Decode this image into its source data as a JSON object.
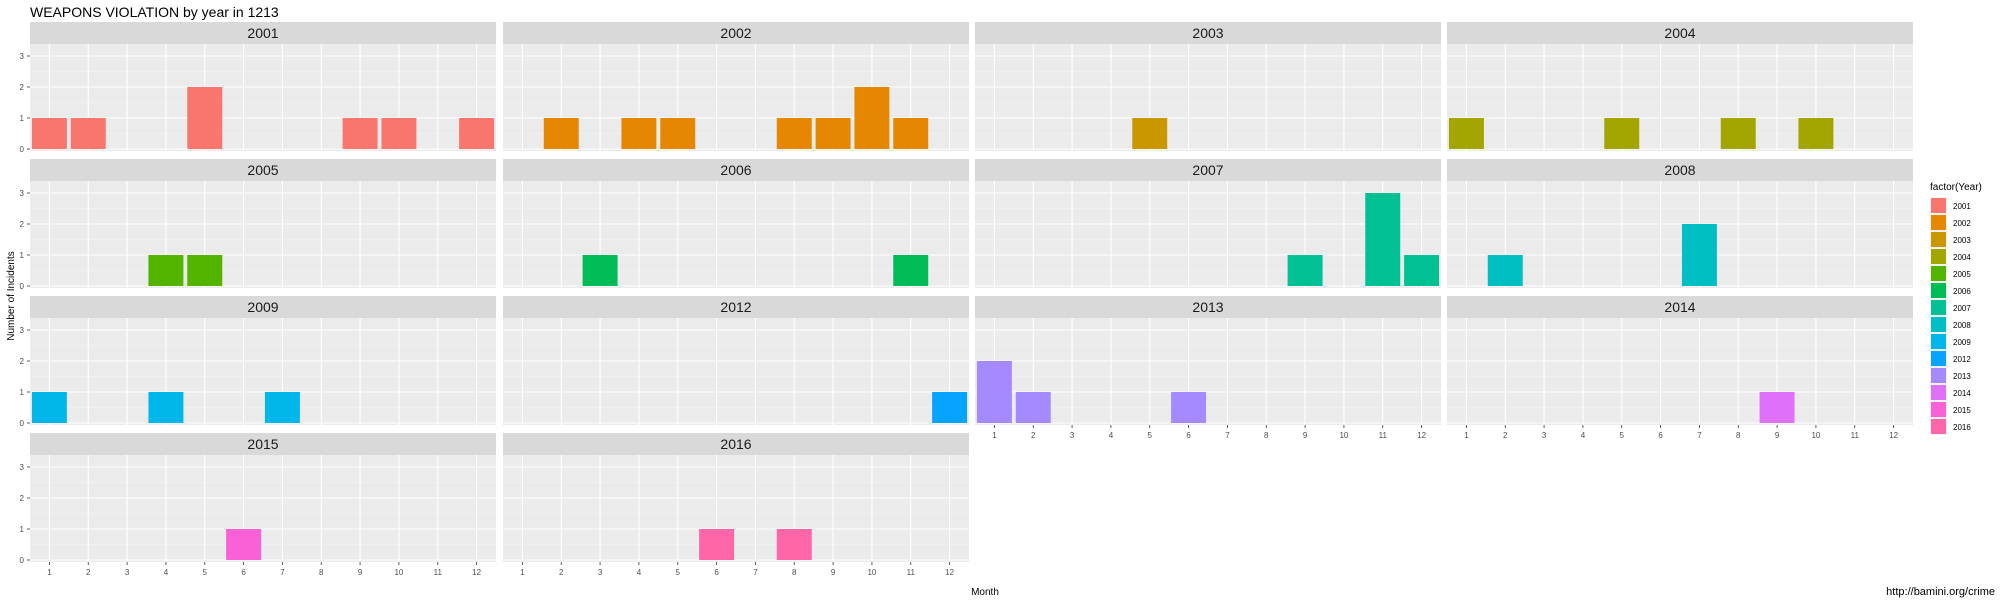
{
  "chart_data": {
    "type": "bar",
    "title": "WEAPONS VIOLATION by year in 1213",
    "xlabel": "Month",
    "ylabel": "Number of Incidents",
    "x_ticks": [
      1,
      2,
      3,
      4,
      5,
      6,
      7,
      8,
      9,
      10,
      11,
      12
    ],
    "ylim": [
      0,
      3
    ],
    "y_ticks": [
      0,
      1,
      2,
      3
    ],
    "grid": true,
    "legend": {
      "title": "factor(Year)",
      "placement": "right"
    },
    "source_note": "http://bamini.org/crime",
    "panels": [
      {
        "year": "2001",
        "color": "#F8766D",
        "bars": [
          {
            "month": 1,
            "count": 1
          },
          {
            "month": 2,
            "count": 1
          },
          {
            "month": 5,
            "count": 2
          },
          {
            "month": 9,
            "count": 1
          },
          {
            "month": 10,
            "count": 1
          },
          {
            "month": 12,
            "count": 1
          }
        ]
      },
      {
        "year": "2002",
        "color": "#E58700",
        "bars": [
          {
            "month": 2,
            "count": 1
          },
          {
            "month": 4,
            "count": 1
          },
          {
            "month": 5,
            "count": 1
          },
          {
            "month": 8,
            "count": 1
          },
          {
            "month": 9,
            "count": 1
          },
          {
            "month": 10,
            "count": 2
          },
          {
            "month": 11,
            "count": 1
          }
        ]
      },
      {
        "year": "2003",
        "color": "#C99800",
        "bars": [
          {
            "month": 5,
            "count": 1
          }
        ]
      },
      {
        "year": "2004",
        "color": "#A3A500",
        "bars": [
          {
            "month": 1,
            "count": 1
          },
          {
            "month": 5,
            "count": 1
          },
          {
            "month": 8,
            "count": 1
          },
          {
            "month": 10,
            "count": 1
          }
        ]
      },
      {
        "year": "2005",
        "color": "#53B400",
        "bars": [
          {
            "month": 4,
            "count": 1
          },
          {
            "month": 5,
            "count": 1
          }
        ]
      },
      {
        "year": "2006",
        "color": "#00BC56",
        "bars": [
          {
            "month": 3,
            "count": 1
          },
          {
            "month": 11,
            "count": 1
          }
        ]
      },
      {
        "year": "2007",
        "color": "#00C094",
        "bars": [
          {
            "month": 9,
            "count": 1
          },
          {
            "month": 11,
            "count": 3
          },
          {
            "month": 12,
            "count": 1
          }
        ]
      },
      {
        "year": "2008",
        "color": "#00BFC4",
        "bars": [
          {
            "month": 2,
            "count": 1
          },
          {
            "month": 7,
            "count": 2
          }
        ]
      },
      {
        "year": "2009",
        "color": "#00B6EB",
        "bars": [
          {
            "month": 1,
            "count": 1
          },
          {
            "month": 4,
            "count": 1
          },
          {
            "month": 7,
            "count": 1
          }
        ]
      },
      {
        "year": "2012",
        "color": "#06A4FF",
        "bars": [
          {
            "month": 12,
            "count": 1
          }
        ]
      },
      {
        "year": "2013",
        "color": "#A58AFF",
        "bars": [
          {
            "month": 1,
            "count": 2
          },
          {
            "month": 2,
            "count": 1
          },
          {
            "month": 6,
            "count": 1
          }
        ]
      },
      {
        "year": "2014",
        "color": "#DF70F8",
        "bars": [
          {
            "month": 9,
            "count": 1
          }
        ]
      },
      {
        "year": "2015",
        "color": "#FB61D7",
        "bars": [
          {
            "month": 6,
            "count": 1
          }
        ]
      },
      {
        "year": "2016",
        "color": "#FF66A8",
        "bars": [
          {
            "month": 6,
            "count": 1
          },
          {
            "month": 8,
            "count": 1
          }
        ]
      }
    ]
  }
}
